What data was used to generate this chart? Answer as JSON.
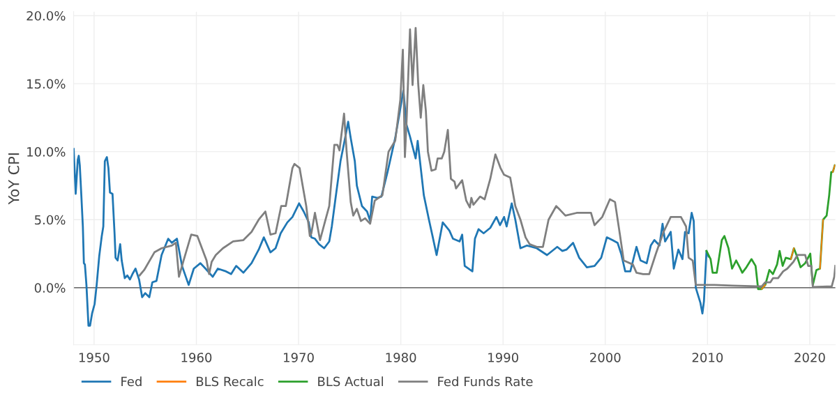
{
  "chart_data": {
    "type": "line",
    "ylabel": "YoY CPI",
    "xlim": [
      1948.0,
      2022.5
    ],
    "ylim": [
      -4.2,
      20.3
    ],
    "xticks": [
      1950,
      1960,
      1970,
      1980,
      1990,
      2000,
      2010,
      2020
    ],
    "yticks": [
      {
        "value": 0,
        "label": "0.0%"
      },
      {
        "value": 5,
        "label": "5.0%"
      },
      {
        "value": 10,
        "label": "10.0%"
      },
      {
        "value": 15,
        "label": "15.0%"
      },
      {
        "value": 20,
        "label": "20.0%"
      }
    ],
    "grid": true,
    "legend": "bottom left",
    "line_style": "solid",
    "ref_lines": [
      {
        "axis": "y",
        "value": 0,
        "color": "#444444"
      }
    ],
    "series": [
      {
        "name": "Fed",
        "color": "#1f77b4",
        "x": [
          1948.0,
          1948.2,
          1948.4,
          1948.5,
          1948.6,
          1948.75,
          1948.9,
          1949.0,
          1949.1,
          1949.25,
          1949.45,
          1949.6,
          1949.8,
          1950.05,
          1950.25,
          1950.5,
          1950.75,
          1950.9,
          1951.05,
          1951.25,
          1951.4,
          1951.55,
          1951.8,
          1952.0,
          1952.1,
          1952.3,
          1952.55,
          1952.7,
          1953.0,
          1953.25,
          1953.5,
          1953.75,
          1954.05,
          1954.4,
          1954.7,
          1955.0,
          1955.4,
          1955.7,
          1956.1,
          1956.6,
          1957.25,
          1957.6,
          1958.1,
          1958.6,
          1959.25,
          1959.75,
          1960.4,
          1960.9,
          1961.6,
          1962.1,
          1962.9,
          1963.4,
          1963.9,
          1964.6,
          1965.4,
          1966.1,
          1966.6,
          1967.25,
          1967.75,
          1968.25,
          1968.9,
          1969.4,
          1970.05,
          1970.5,
          1971.0,
          1971.25,
          1971.6,
          1972.0,
          1972.5,
          1973.0,
          1973.25,
          1973.6,
          1974.1,
          1974.5,
          1974.85,
          1975.1,
          1975.5,
          1975.7,
          1976.2,
          1976.7,
          1977.0,
          1977.2,
          1977.7,
          1978.1,
          1978.7,
          1979.45,
          1979.8,
          1980.25,
          1980.55,
          1980.9,
          1981.45,
          1981.65,
          1982.25,
          1982.75,
          1983.1,
          1983.5,
          1984.1,
          1984.75,
          1985.1,
          1985.75,
          1986.0,
          1986.25,
          1987.0,
          1987.25,
          1987.6,
          1988.1,
          1988.75,
          1989.35,
          1989.7,
          1990.1,
          1990.35,
          1990.85,
          1991.2,
          1991.7,
          1992.35,
          1993.3,
          1994.3,
          1995.3,
          1995.8,
          1996.2,
          1996.85,
          1997.45,
          1998.2,
          1998.95,
          1999.6,
          2000.15,
          2000.7,
          2001.2,
          2001.55,
          2001.95,
          2002.45,
          2003.05,
          2003.45,
          2004.05,
          2004.45,
          2004.8,
          2005.3,
          2005.6,
          2005.85,
          2006.4,
          2006.7,
          2007.15,
          2007.55,
          2007.8,
          2008.15,
          2008.45,
          2008.65,
          2008.85,
          2009.3,
          2009.5,
          2009.65,
          2009.9,
          2010.1
        ],
        "values": [
          10.2,
          6.9,
          9.4,
          9.7,
          9.0,
          6.8,
          4.5,
          1.8,
          1.7,
          0.2,
          -2.8,
          -2.8,
          -1.9,
          -1.2,
          0.2,
          2.3,
          3.8,
          4.5,
          9.3,
          9.6,
          8.8,
          7.0,
          6.9,
          4.0,
          2.2,
          2.0,
          3.2,
          2.0,
          0.7,
          0.9,
          0.6,
          1.0,
          1.4,
          0.6,
          -0.7,
          -0.4,
          -0.7,
          0.4,
          0.5,
          2.4,
          3.6,
          3.3,
          3.6,
          1.6,
          0.2,
          1.4,
          1.8,
          1.4,
          0.8,
          1.4,
          1.2,
          1.0,
          1.6,
          1.1,
          1.8,
          2.8,
          3.7,
          2.6,
          2.9,
          4.0,
          4.8,
          5.2,
          6.2,
          5.6,
          4.8,
          3.7,
          3.6,
          3.2,
          2.9,
          3.4,
          4.5,
          6.5,
          9.3,
          10.8,
          12.2,
          11.0,
          9.3,
          7.5,
          6.0,
          5.6,
          4.9,
          6.7,
          6.6,
          6.7,
          8.5,
          11.0,
          12.5,
          14.5,
          12.0,
          11.1,
          9.5,
          10.8,
          6.8,
          5.0,
          3.8,
          2.4,
          4.8,
          4.2,
          3.6,
          3.4,
          3.9,
          1.6,
          1.2,
          3.6,
          4.3,
          4.0,
          4.4,
          5.2,
          4.6,
          5.2,
          4.5,
          6.2,
          5.0,
          2.9,
          3.1,
          2.9,
          2.4,
          3.0,
          2.7,
          2.8,
          3.3,
          2.2,
          1.5,
          1.6,
          2.2,
          3.7,
          3.5,
          3.3,
          2.5,
          1.2,
          1.2,
          3.0,
          2.0,
          1.8,
          3.1,
          3.5,
          3.1,
          4.7,
          3.4,
          4.1,
          1.4,
          2.8,
          2.1,
          4.1,
          4.0,
          5.5,
          4.9,
          0.0,
          -1.1,
          -1.9,
          -1.0,
          2.7,
          2.3
        ]
      },
      {
        "name": "BLS Recalc",
        "color": "#ff7f0e",
        "x": [
          2015.3,
          2015.65,
          2016.05,
          2018.15,
          2018.45,
          2019.0,
          2021.0,
          2021.3,
          2021.6,
          2022.25,
          2022.45
        ],
        "values": [
          -0.1,
          0.2,
          null,
          2.1,
          2.9,
          null,
          1.4,
          5.0,
          null,
          8.5,
          9.0
        ]
      },
      {
        "name": "BLS Actual",
        "color": "#2ca02c",
        "x": [
          2009.9,
          2010.3,
          2010.5,
          2010.9,
          2011.4,
          2011.65,
          2012.05,
          2012.4,
          2012.8,
          2013.15,
          2013.4,
          2013.8,
          2014.3,
          2014.7,
          2014.95,
          2015.3,
          2015.65,
          2016.05,
          2016.4,
          2016.8,
          2017.05,
          2017.35,
          2017.65,
          2018.15,
          2018.45,
          2018.8,
          2019.1,
          2019.55,
          2020.05,
          2020.3,
          2020.65,
          2021.0,
          2021.3,
          2021.65,
          2021.9,
          2022.1,
          2022.25,
          2022.45
        ],
        "values": [
          2.7,
          2.1,
          1.1,
          1.1,
          3.5,
          3.8,
          2.9,
          1.4,
          2.0,
          1.5,
          1.1,
          1.5,
          2.1,
          1.6,
          -0.1,
          -0.1,
          0.2,
          1.3,
          1.0,
          1.7,
          2.7,
          1.6,
          2.2,
          2.1,
          2.9,
          2.2,
          1.5,
          1.8,
          2.5,
          0.2,
          1.3,
          1.4,
          5.0,
          5.3,
          6.8,
          8.5,
          8.5,
          9.0
        ]
      },
      {
        "name": "Fed Funds Rate",
        "color": "#7f7f7f",
        "x": [
          1954.45,
          1954.9,
          1955.9,
          1956.6,
          1957.6,
          1958.0,
          1958.3,
          1958.75,
          1959.5,
          1960.1,
          1961.0,
          1961.25,
          1961.5,
          1961.9,
          1962.6,
          1963.6,
          1964.6,
          1965.4,
          1966.1,
          1966.75,
          1967.25,
          1967.75,
          1968.3,
          1968.75,
          1969.4,
          1969.6,
          1970.1,
          1970.4,
          1970.75,
          1971.1,
          1971.25,
          1971.6,
          1971.85,
          1972.1,
          1972.6,
          1973.0,
          1973.5,
          1973.8,
          1974.0,
          1974.45,
          1974.7,
          1975.1,
          1975.35,
          1975.7,
          1976.1,
          1976.5,
          1977.0,
          1977.45,
          1978.2,
          1978.8,
          1979.45,
          1979.95,
          1980.2,
          1980.4,
          1980.55,
          1980.9,
          1981.15,
          1981.45,
          1981.7,
          1981.95,
          1982.2,
          1982.45,
          1982.65,
          1983.0,
          1983.4,
          1983.6,
          1984.0,
          1984.25,
          1984.6,
          1984.9,
          1985.25,
          1985.4,
          1986.0,
          1986.4,
          1986.75,
          1986.9,
          1987.1,
          1987.75,
          1988.2,
          1988.75,
          1989.25,
          1989.75,
          1990.1,
          1990.7,
          1991.2,
          1991.7,
          1992.2,
          1992.6,
          1993.3,
          1993.9,
          1994.45,
          1995.2,
          1995.6,
          1996.1,
          1997.2,
          1998.6,
          1998.95,
          1999.7,
          2000.45,
          2000.95,
          2001.45,
          2001.8,
          2002.7,
          2003.05,
          2003.7,
          2004.3,
          2004.95,
          2005.7,
          2006.4,
          2007.4,
          2007.9,
          2008.15,
          2008.55,
          2008.85,
          2010.7,
          2012.4,
          2014.9,
          2015.3,
          2015.65,
          2016.15,
          2016.4,
          2016.9,
          2017.4,
          2017.8,
          2018.4,
          2018.8,
          2019.55,
          2019.85,
          2020.15,
          2020.3,
          2022.15,
          2022.4,
          2022.5
        ],
        "values": [
          0.9,
          1.3,
          2.6,
          2.9,
          3.1,
          3.3,
          0.8,
          2.0,
          3.9,
          3.8,
          2.0,
          1.0,
          1.9,
          2.4,
          2.9,
          3.4,
          3.5,
          4.1,
          5.0,
          5.6,
          3.9,
          4.0,
          6.0,
          6.0,
          8.8,
          9.1,
          8.8,
          7.5,
          6.0,
          3.8,
          4.0,
          5.5,
          4.5,
          3.5,
          4.9,
          6.0,
          10.5,
          10.5,
          10.1,
          12.8,
          10.0,
          6.3,
          5.3,
          5.8,
          4.9,
          5.1,
          4.7,
          6.4,
          6.8,
          10.0,
          10.8,
          13.8,
          17.5,
          9.6,
          12.0,
          19.0,
          14.9,
          19.1,
          15.0,
          12.5,
          14.9,
          13.0,
          10.0,
          8.6,
          8.7,
          9.5,
          9.5,
          10.0,
          11.6,
          8.0,
          7.8,
          7.3,
          7.9,
          6.4,
          5.9,
          6.6,
          6.1,
          6.7,
          6.5,
          8.0,
          9.8,
          8.8,
          8.3,
          8.1,
          6.0,
          5.0,
          3.7,
          3.2,
          3.0,
          3.0,
          5.0,
          6.0,
          5.7,
          5.3,
          5.5,
          5.5,
          4.6,
          5.2,
          6.5,
          6.3,
          3.8,
          2.0,
          1.7,
          1.1,
          1.0,
          1.0,
          2.5,
          4.1,
          5.2,
          5.2,
          4.5,
          2.2,
          2.0,
          0.2,
          0.2,
          0.15,
          0.1,
          0.1,
          0.4,
          0.4,
          0.7,
          0.7,
          1.2,
          1.4,
          1.9,
          2.4,
          2.4,
          1.6,
          1.6,
          0.05,
          0.1,
          0.8,
          1.6
        ]
      }
    ]
  }
}
